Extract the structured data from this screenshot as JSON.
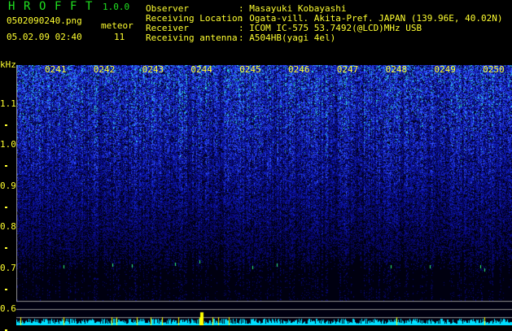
{
  "app": {
    "name_letters": [
      "H",
      "R",
      "O",
      "F",
      "F",
      "T"
    ],
    "version": "1.0.0"
  },
  "file": {
    "name": "0502090240.png",
    "datetime": "05.02.09 02:40"
  },
  "meteor": {
    "label": "meteor",
    "count": "11"
  },
  "info": [
    {
      "label": "Observer",
      "value": ": Masayuki Kobayashi"
    },
    {
      "label": "Receiving Location",
      "value": ": Ogata-vill. Akita-Pref. JAPAN (139.96E, 40.02N)"
    },
    {
      "label": "Receiver",
      "value": ": ICOM IC-575 53.7492(@LCD)MHz USB"
    },
    {
      "label": "Receiving antenna",
      "value": ": A504HB(yagi 4el)"
    }
  ],
  "axis": {
    "y_unit": "kHz",
    "y_ticks": [
      "1.1",
      "1.0",
      "0.9",
      "0.8",
      "0.7",
      "0.6"
    ],
    "time_ticks": [
      "0241",
      "0242",
      "0243",
      "0244",
      "0245",
      "0246",
      "0247",
      "0248",
      "0249",
      "0250"
    ]
  },
  "colors": {
    "text": "#ffff30",
    "title": "#20e020",
    "histogram": "#00e0ff",
    "marker": "#ffff00",
    "background": "#000000"
  }
}
